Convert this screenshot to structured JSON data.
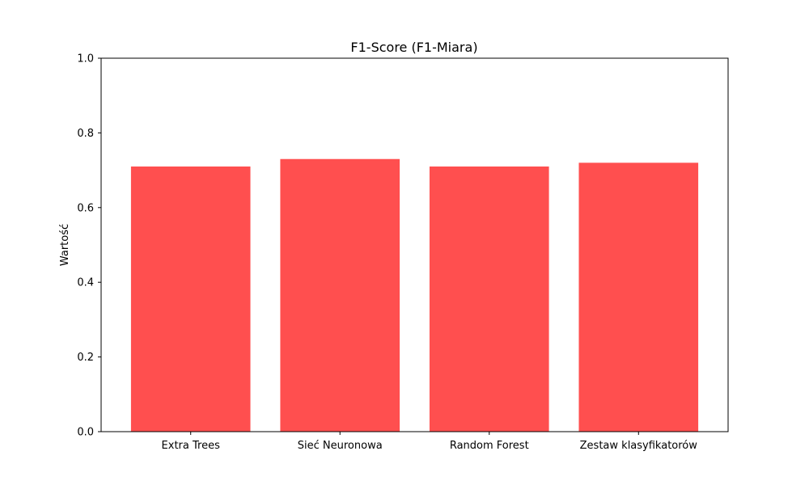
{
  "chart_data": {
    "type": "bar",
    "title": "F1-Score (F1-Miara)",
    "xlabel": "",
    "ylabel": "Wartość",
    "categories": [
      "Extra Trees",
      "Sieć Neuronowa",
      "Random Forest",
      "Zestaw klasyfikatorów"
    ],
    "values": [
      0.71,
      0.73,
      0.71,
      0.72
    ],
    "ylim": [
      0,
      1.0
    ],
    "yticks": [
      "0.0",
      "0.2",
      "0.4",
      "0.6",
      "0.8",
      "1.0"
    ],
    "grid": false,
    "bar_color": "#ff4f4f"
  }
}
